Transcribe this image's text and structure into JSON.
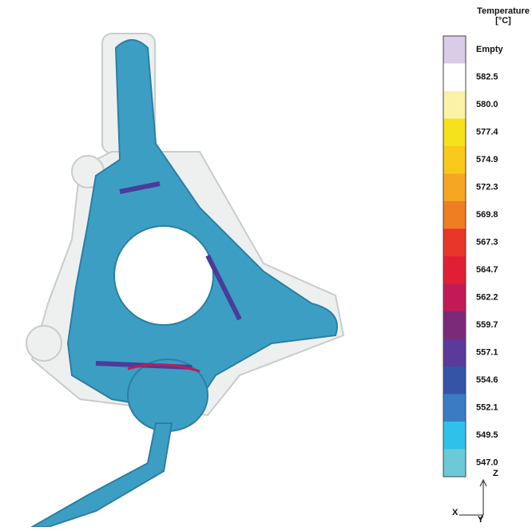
{
  "legend": {
    "title": "Temperature",
    "unit": "[°C]",
    "entries": [
      {
        "label": "Empty",
        "color": "#d8cce6"
      },
      {
        "label": "582.5",
        "color": "#ffffff"
      },
      {
        "label": "580.0",
        "color": "#fbf2a8"
      },
      {
        "label": "577.4",
        "color": "#f6e21a"
      },
      {
        "label": "574.9",
        "color": "#f8c91a"
      },
      {
        "label": "572.3",
        "color": "#f5a623"
      },
      {
        "label": "569.8",
        "color": "#ef7d22"
      },
      {
        "label": "567.3",
        "color": "#e8352a"
      },
      {
        "label": "564.7",
        "color": "#e01f35"
      },
      {
        "label": "562.2",
        "color": "#c31a57"
      },
      {
        "label": "559.7",
        "color": "#7a2a78"
      },
      {
        "label": "557.1",
        "color": "#5a3a9a"
      },
      {
        "label": "554.6",
        "color": "#3554a8"
      },
      {
        "label": "552.1",
        "color": "#3a7cc4"
      },
      {
        "label": "549.5",
        "color": "#2ec2ea"
      },
      {
        "label": "547.0",
        "color": "#6ccad8"
      }
    ]
  },
  "axes": {
    "z": "Z",
    "x": "X",
    "y": "Y"
  }
}
